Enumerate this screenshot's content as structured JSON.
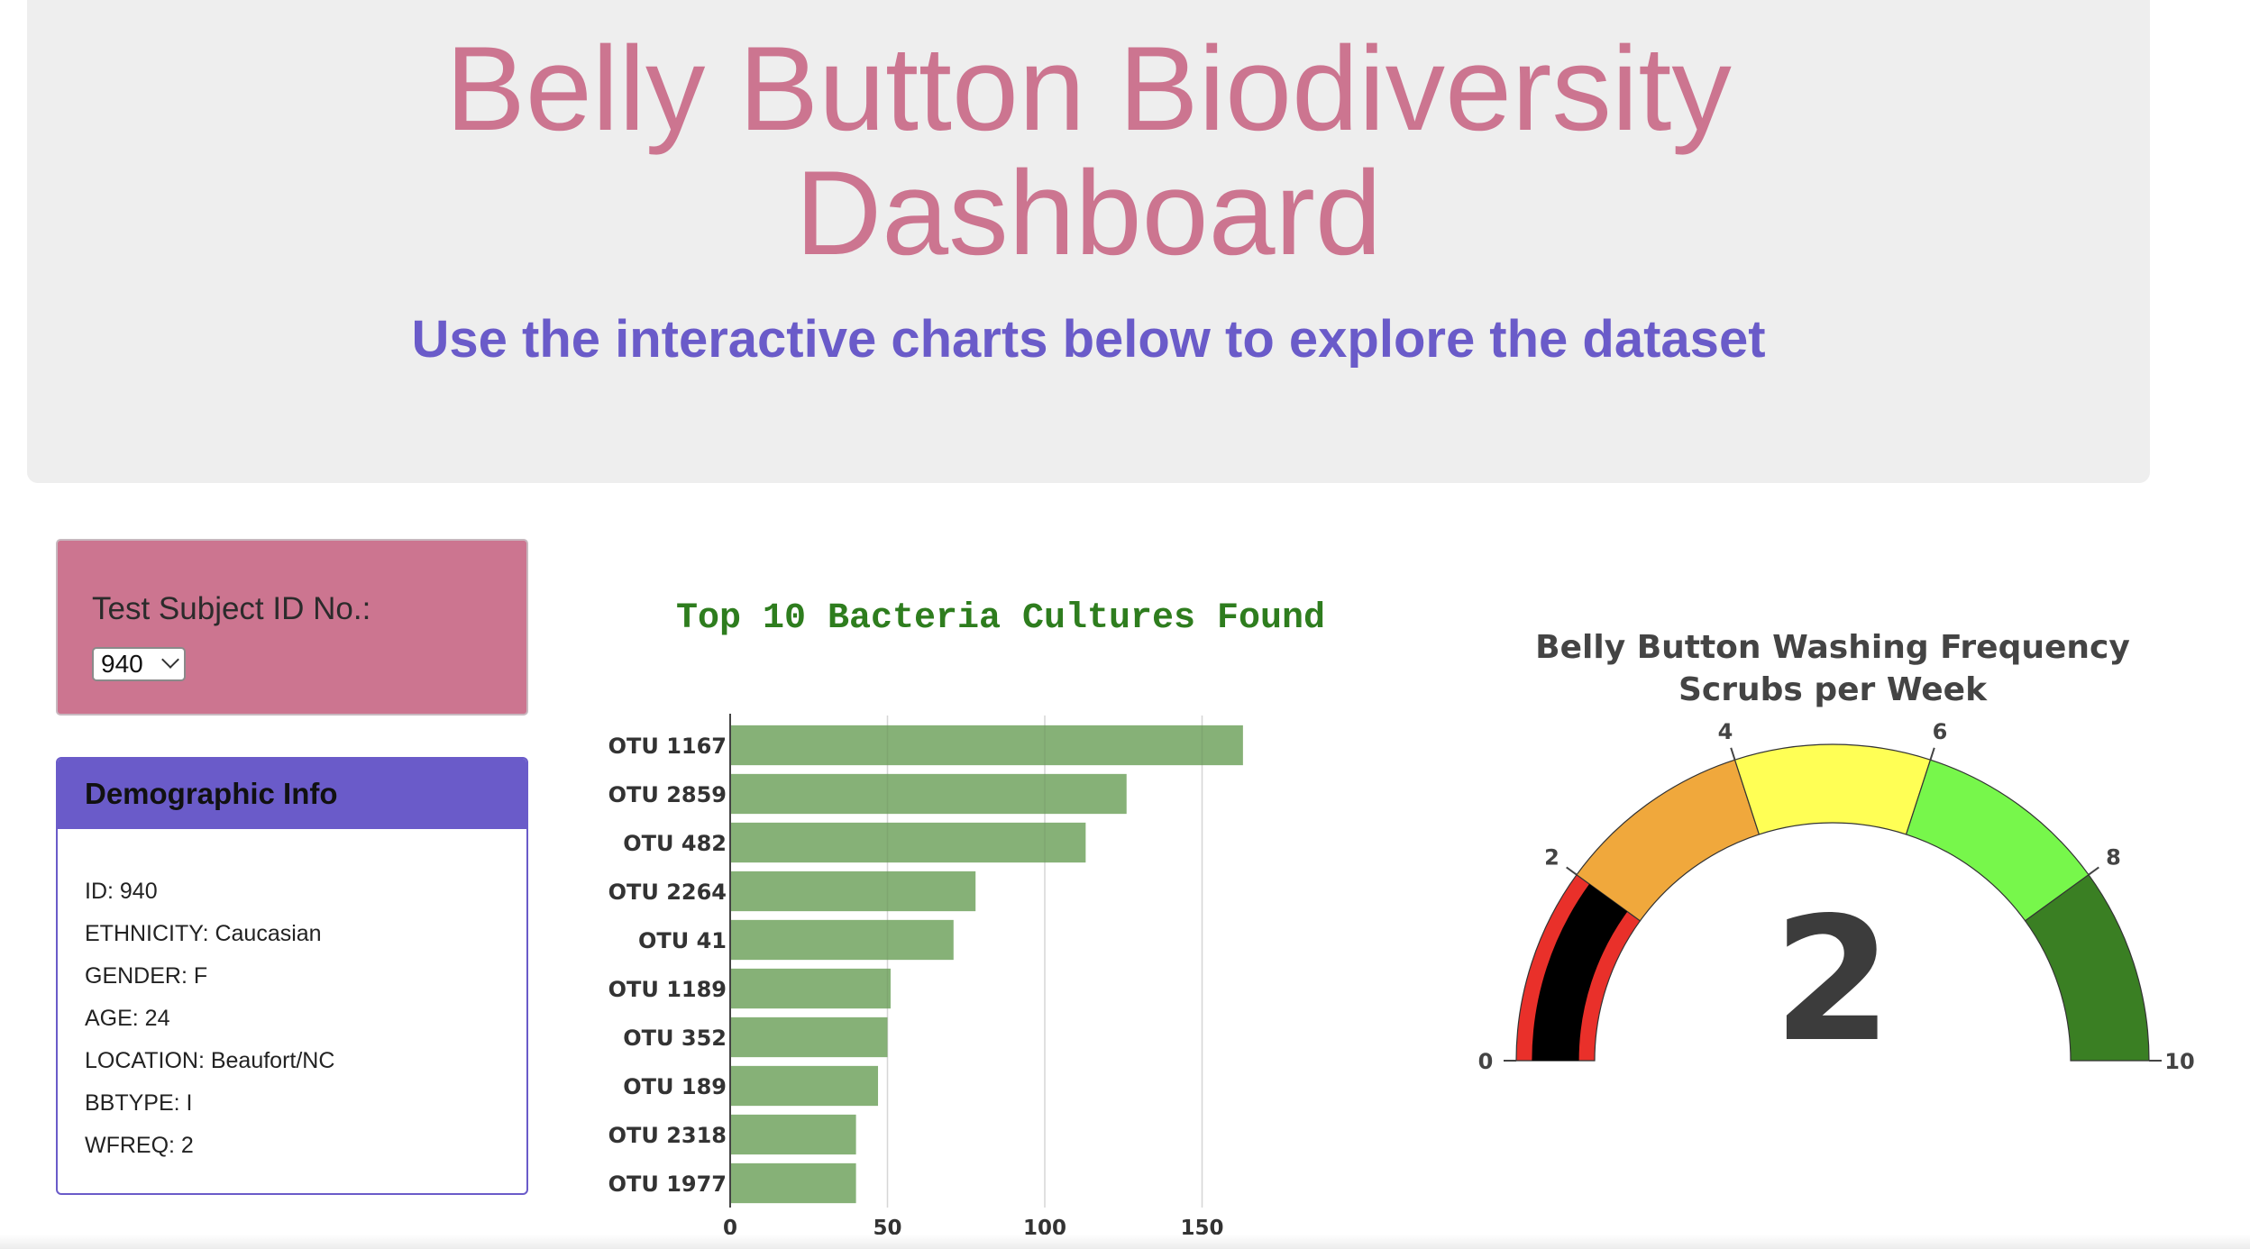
{
  "header": {
    "title_line1": "Belly Button Biodiversity",
    "title_line2": "Dashboard",
    "subtitle": "Use the interactive charts below to explore the dataset"
  },
  "selector": {
    "label": "Test Subject ID No.:",
    "selected_value": "940"
  },
  "demographics": {
    "heading": "Demographic Info",
    "items": [
      "ID: 940",
      "ETHNICITY: Caucasian",
      "GENDER: F",
      "AGE: 24",
      "LOCATION: Beaufort/NC",
      "BBTYPE: I",
      "WFREQ: 2"
    ]
  },
  "colors": {
    "title": "#cc7590",
    "subtitle": "#6a5bc9",
    "selector_panel": "#cc7590",
    "demo_header": "#6a5bc9",
    "bar_fill": "#86b177",
    "bar_title": "#2e7d1e"
  },
  "icons": {
    "select_arrow": "chevron-down-icon"
  },
  "chart_data": [
    {
      "type": "bar",
      "orientation": "horizontal",
      "title": "Top 10 Bacteria Cultures Found",
      "categories": [
        "OTU 1167",
        "OTU 2859",
        "OTU 482",
        "OTU 2264",
        "OTU 41",
        "OTU 1189",
        "OTU 352",
        "OTU 189",
        "OTU 2318",
        "OTU 1977"
      ],
      "values": [
        163,
        126,
        113,
        78,
        71,
        51,
        50,
        47,
        40,
        40
      ],
      "xlim": [
        0,
        180
      ],
      "xticks": [
        "0",
        "50",
        "100",
        "150"
      ],
      "xgrid": true
    },
    {
      "type": "gauge",
      "title_line1": "Belly Button Washing Frequency",
      "title_line2": "Scrubs per Week",
      "value": 2,
      "value_label": "2",
      "range": [
        0,
        10
      ],
      "ticks": [
        "0",
        "2",
        "4",
        "6",
        "8",
        "10"
      ],
      "steps": [
        {
          "range": [
            0,
            2
          ],
          "color": "#e9302a"
        },
        {
          "range": [
            2,
            4
          ],
          "color": "#f0a83c"
        },
        {
          "range": [
            4,
            6
          ],
          "color": "#ffff55"
        },
        {
          "range": [
            6,
            8
          ],
          "color": "#77f74b"
        },
        {
          "range": [
            8,
            10
          ],
          "color": "#3a7f23"
        }
      ],
      "bar_color": "#000000"
    }
  ]
}
